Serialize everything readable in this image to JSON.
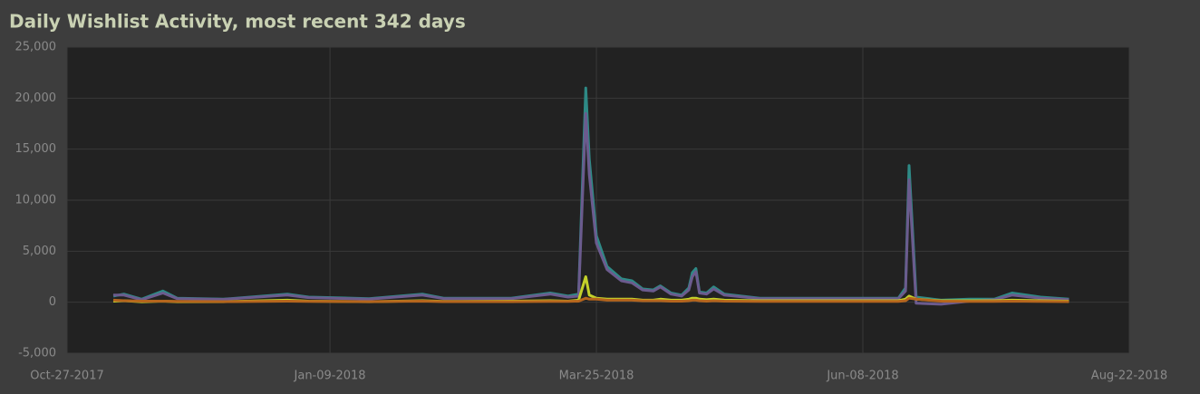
{
  "chart_data": {
    "type": "line",
    "title": "Daily Wishlist Activity, most recent 342 days",
    "x": [
      "2017-11-09",
      "2017-11-12",
      "2017-11-17",
      "2017-11-23",
      "2017-11-27",
      "2017-12-10",
      "2017-12-28",
      "2018-01-03",
      "2018-01-20",
      "2018-02-04",
      "2018-02-10",
      "2018-03-01",
      "2018-03-12",
      "2018-03-17",
      "2018-03-20",
      "2018-03-22",
      "2018-03-23",
      "2018-03-25",
      "2018-03-28",
      "2018-04-01",
      "2018-04-04",
      "2018-04-07",
      "2018-04-10",
      "2018-04-12",
      "2018-04-15",
      "2018-04-18",
      "2018-04-20",
      "2018-04-21",
      "2018-04-22",
      "2018-04-23",
      "2018-04-25",
      "2018-04-27",
      "2018-04-30",
      "2018-05-10",
      "2018-05-31",
      "2018-06-18",
      "2018-06-20",
      "2018-06-21",
      "2018-06-23",
      "2018-06-30",
      "2018-07-08",
      "2018-07-15",
      "2018-07-20",
      "2018-07-28",
      "2018-08-05"
    ],
    "series": [
      {
        "color": "#2e8a86",
        "values": [
          600,
          800,
          300,
          1100,
          400,
          300,
          800,
          500,
          350,
          800,
          400,
          400,
          900,
          600,
          800,
          21000,
          14000,
          6500,
          3500,
          2300,
          2100,
          1300,
          1200,
          1600,
          900,
          700,
          1400,
          2900,
          3300,
          1000,
          900,
          1500,
          800,
          400,
          400,
          400,
          1400,
          13400,
          500,
          200,
          300,
          300,
          900,
          500,
          300
        ]
      },
      {
        "color": "#6b5b8e",
        "values": [
          700,
          700,
          250,
          900,
          350,
          280,
          700,
          450,
          300,
          700,
          350,
          350,
          800,
          500,
          600,
          18500,
          12500,
          5800,
          3200,
          2100,
          1900,
          1200,
          1100,
          1500,
          800,
          600,
          1200,
          2500,
          3000,
          900,
          800,
          1300,
          700,
          350,
          350,
          350,
          1100,
          12000,
          -100,
          -200,
          100,
          250,
          700,
          400,
          250
        ]
      },
      {
        "color": "#c4d22a",
        "values": [
          100,
          150,
          50,
          100,
          50,
          50,
          200,
          100,
          50,
          150,
          80,
          100,
          150,
          100,
          200,
          2500,
          700,
          400,
          300,
          300,
          300,
          200,
          200,
          300,
          200,
          200,
          300,
          400,
          400,
          300,
          250,
          300,
          200,
          150,
          150,
          150,
          300,
          600,
          300,
          150,
          150,
          150,
          200,
          150,
          100
        ]
      },
      {
        "color": "#b5651d",
        "values": [
          200,
          150,
          100,
          100,
          80,
          60,
          100,
          80,
          60,
          100,
          60,
          60,
          80,
          80,
          100,
          400,
          300,
          300,
          200,
          200,
          200,
          150,
          150,
          150,
          100,
          100,
          150,
          200,
          200,
          150,
          100,
          150,
          100,
          80,
          80,
          80,
          150,
          400,
          300,
          100,
          80,
          80,
          100,
          80,
          60
        ]
      }
    ],
    "xlim": [
      "2017-10-27",
      "2018-08-22"
    ],
    "xticks": [
      {
        "value": "2017-10-27",
        "label": "Oct-27-2017"
      },
      {
        "value": "2018-01-09",
        "label": "Jan-09-2018"
      },
      {
        "value": "2018-03-25",
        "label": "Mar-25-2018"
      },
      {
        "value": "2018-06-08",
        "label": "Jun-08-2018"
      },
      {
        "value": "2018-08-22",
        "label": "Aug-22-2018"
      }
    ],
    "ylim": [
      -5000,
      25000
    ],
    "yticks": [
      {
        "value": -5000,
        "label": "-5,000"
      },
      0,
      {
        "value": 5000,
        "label": "5,000"
      },
      {
        "value": 10000,
        "label": "10,000"
      },
      {
        "value": 15000,
        "label": "15,000"
      },
      {
        "value": 20000,
        "label": "20,000"
      },
      {
        "value": 25000,
        "label": "25,000"
      }
    ],
    "grid": true
  }
}
